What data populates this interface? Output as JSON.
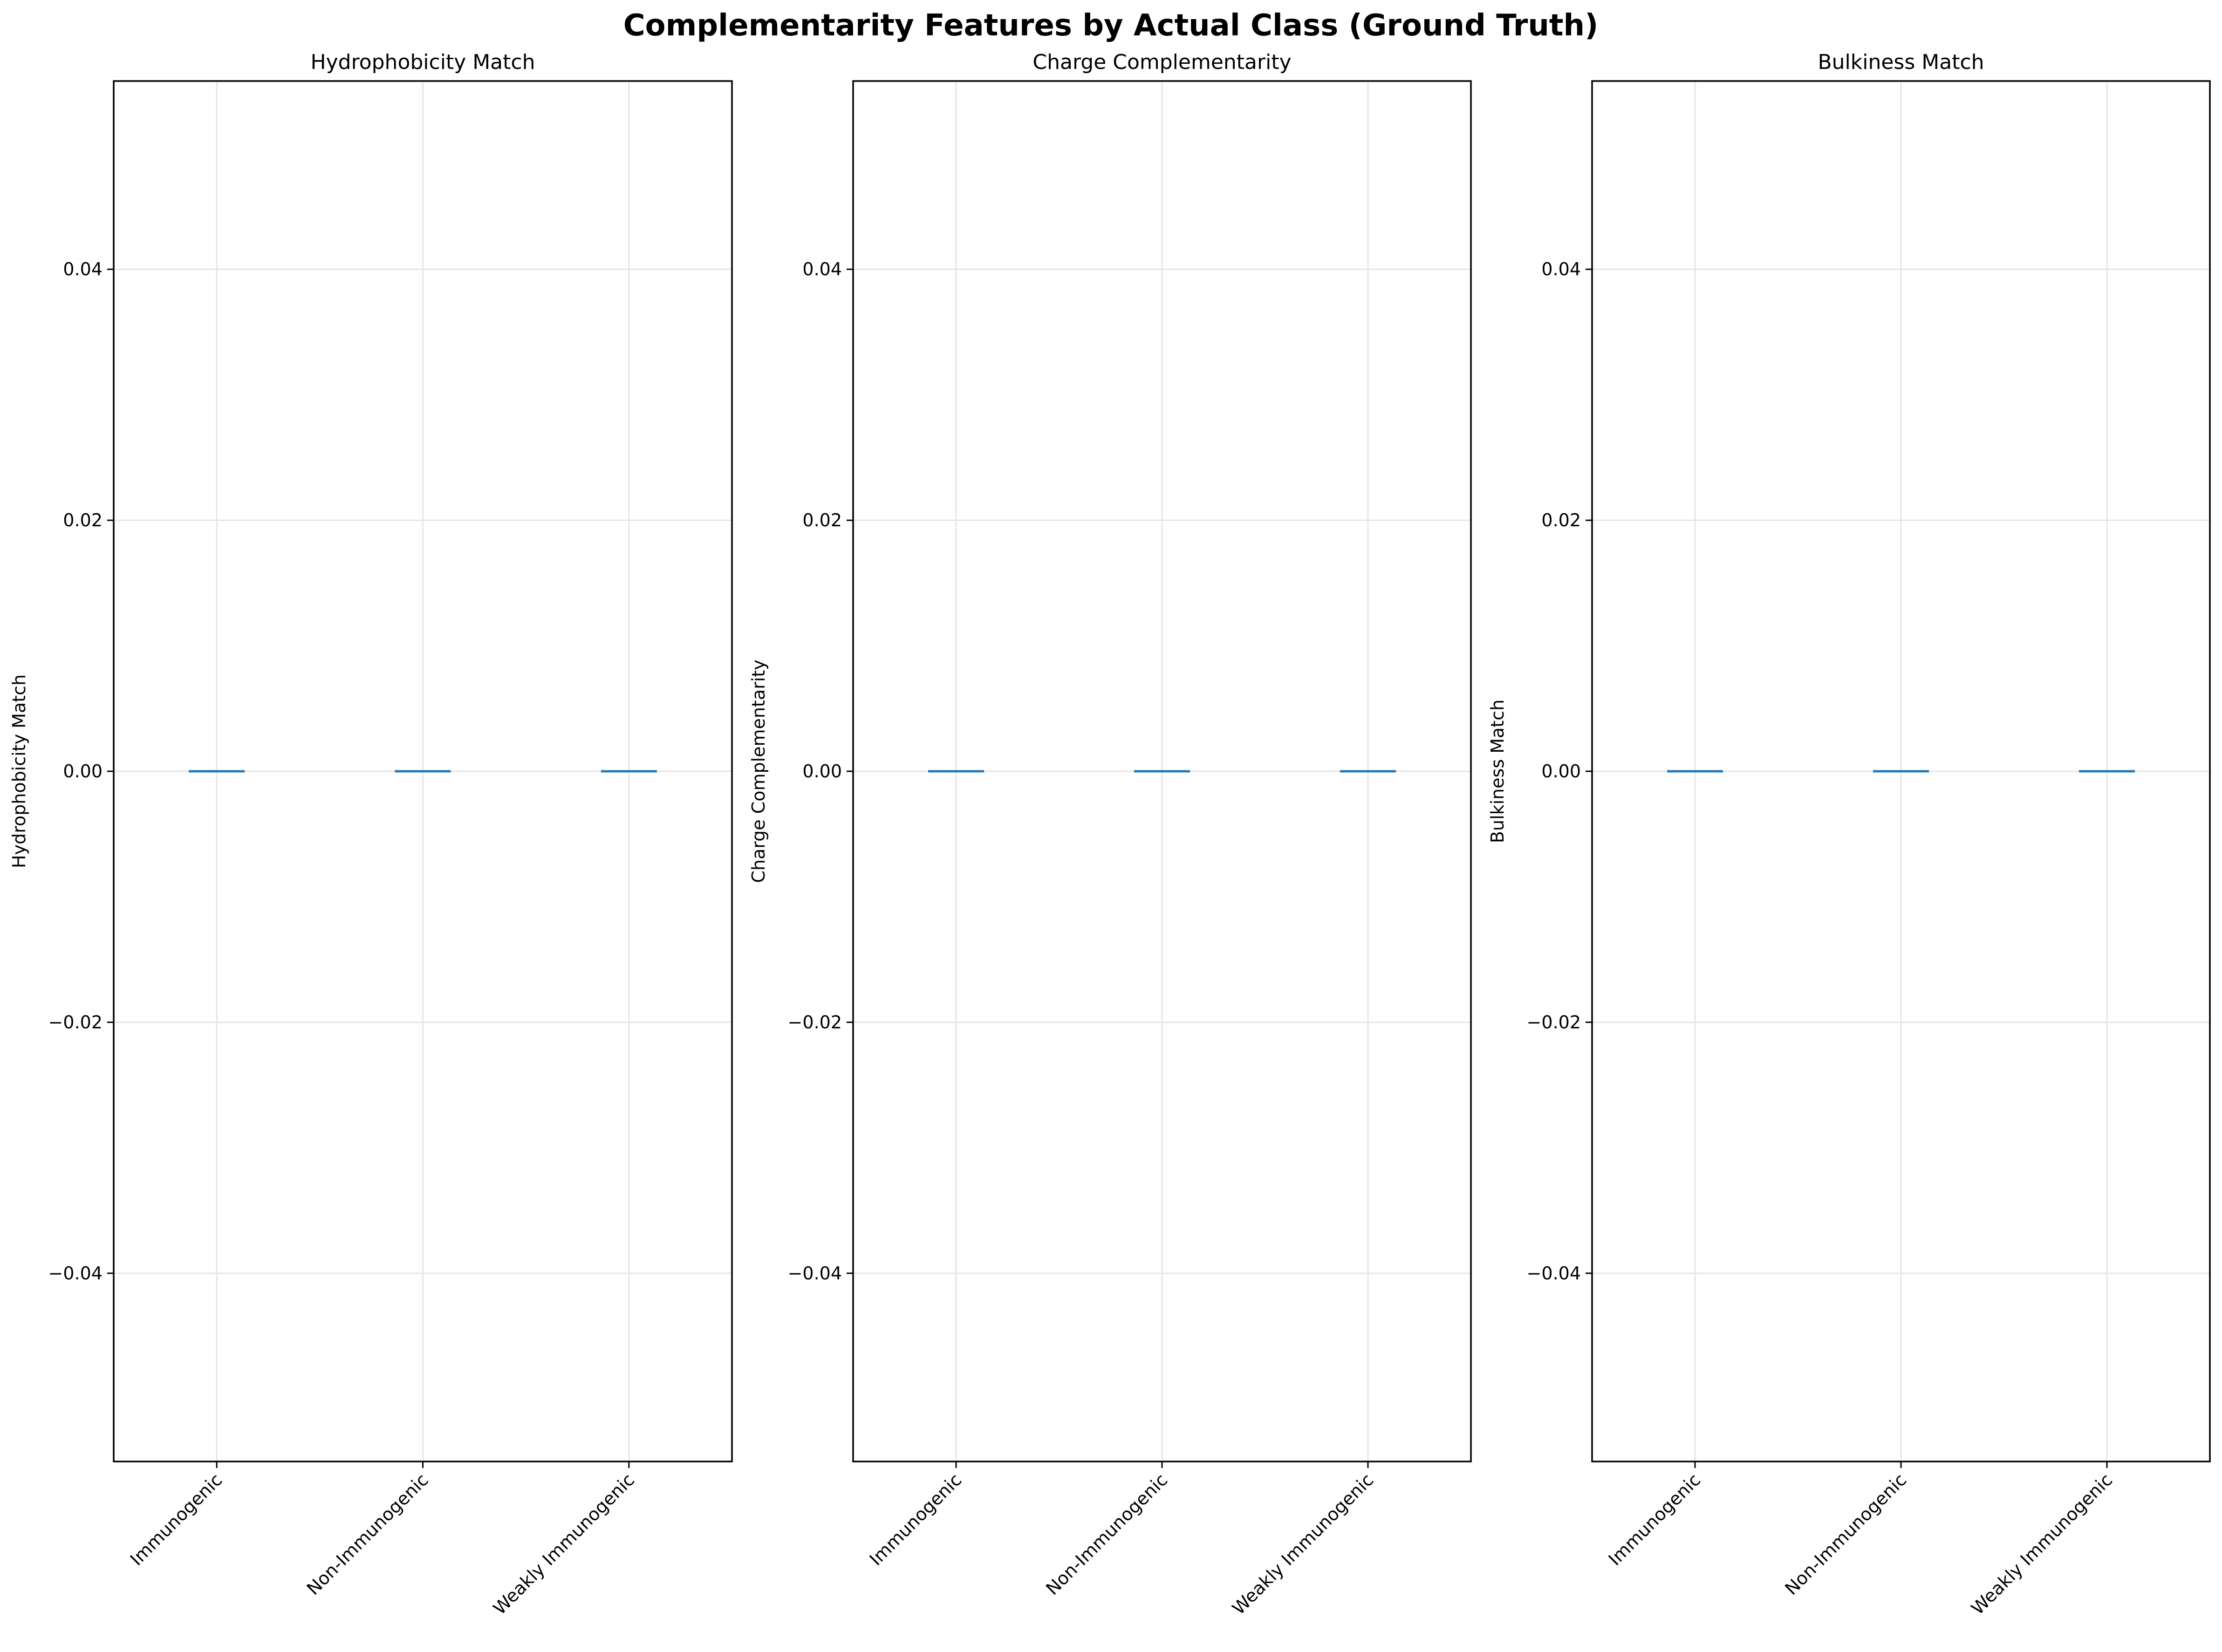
{
  "figure": {
    "title": "Complementarity Features by Actual Class (Ground Truth)"
  },
  "chart_data": [
    {
      "type": "box",
      "title": "Hydrophobicity Match",
      "xlabel": "",
      "ylabel": "Hydrophobicity Match",
      "categories": [
        "Immunogenic",
        "Non-Immunogenic",
        "Weakly Immunogenic"
      ],
      "median": [
        0.0,
        0.0,
        0.0
      ],
      "ylim": [
        -0.055,
        0.055
      ],
      "yticks": [
        -0.04,
        -0.02,
        0.0,
        0.02,
        0.04
      ],
      "ytick_labels": [
        "−0.04",
        "−0.02",
        "0.00",
        "0.02",
        "0.04"
      ],
      "grid": true,
      "median_color": "#1f77b4"
    },
    {
      "type": "box",
      "title": "Charge Complementarity",
      "xlabel": "",
      "ylabel": "Charge Complementarity",
      "categories": [
        "Immunogenic",
        "Non-Immunogenic",
        "Weakly Immunogenic"
      ],
      "median": [
        0.0,
        0.0,
        0.0
      ],
      "ylim": [
        -0.055,
        0.055
      ],
      "yticks": [
        -0.04,
        -0.02,
        0.0,
        0.02,
        0.04
      ],
      "ytick_labels": [
        "−0.04",
        "−0.02",
        "0.00",
        "0.02",
        "0.04"
      ],
      "grid": true,
      "median_color": "#1f77b4"
    },
    {
      "type": "box",
      "title": "Bulkiness Match",
      "xlabel": "",
      "ylabel": "Bulkiness Match",
      "categories": [
        "Immunogenic",
        "Non-Immunogenic",
        "Weakly Immunogenic"
      ],
      "median": [
        0.0,
        0.0,
        0.0
      ],
      "ylim": [
        -0.055,
        0.055
      ],
      "yticks": [
        -0.04,
        -0.02,
        0.0,
        0.02,
        0.04
      ],
      "ytick_labels": [
        "−0.04",
        "−0.02",
        "0.00",
        "0.02",
        "0.04"
      ],
      "grid": true,
      "median_color": "#1f77b4"
    }
  ]
}
